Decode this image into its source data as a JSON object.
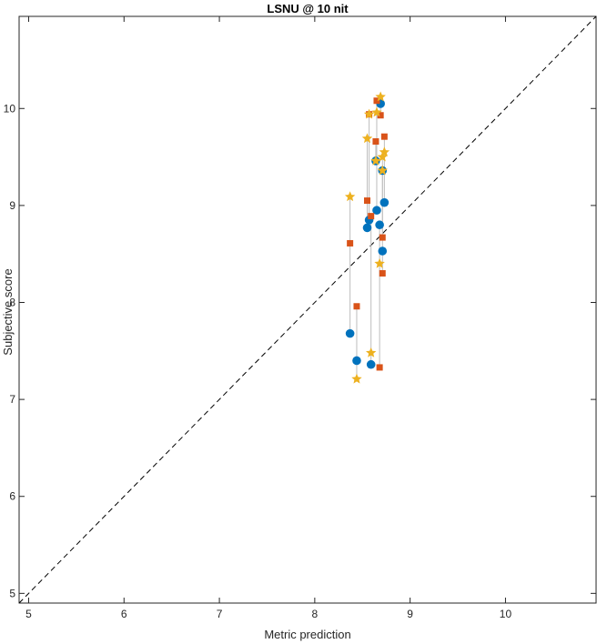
{
  "chart_data": {
    "type": "scatter",
    "title": "LSNU @ 10 nit",
    "xlabel": "Metric prediction",
    "ylabel": "Subjective score",
    "xlim": [
      4.9,
      10.95
    ],
    "ylim": [
      4.9,
      10.95
    ],
    "xticks": [
      5,
      6,
      7,
      8,
      9,
      10
    ],
    "yticks": [
      5,
      6,
      7,
      8,
      9,
      10
    ],
    "grid": false,
    "box": true,
    "reference_line": {
      "style": "dashed",
      "color": "#000000",
      "from": [
        4.9,
        4.9
      ],
      "to": [
        10.95,
        10.95
      ]
    },
    "colors": {
      "circle": "#0072BD",
      "square": "#D95319",
      "star": "#EDB120",
      "connector": "#BDBDBD"
    },
    "points": [
      {
        "x": 8.37,
        "y_circle": 7.68,
        "y_square": 8.61,
        "y_star": 9.09
      },
      {
        "x": 8.44,
        "y_circle": 7.4,
        "y_square": 7.96,
        "y_star": 7.21
      },
      {
        "x": 8.55,
        "y_circle": 8.77,
        "y_square": 9.05,
        "y_star": 9.69
      },
      {
        "x": 8.57,
        "y_circle": 8.85,
        "y_square": 9.94,
        "y_star": 9.94
      },
      {
        "x": 8.59,
        "y_circle": 7.36,
        "y_square": 8.89,
        "y_star": 7.48
      },
      {
        "x": 8.64,
        "y_circle": 9.46,
        "y_square": 9.66,
        "y_star": 9.46
      },
      {
        "x": 8.65,
        "y_circle": 8.95,
        "y_square": 10.08,
        "y_star": 9.96
      },
      {
        "x": 8.68,
        "y_circle": 8.8,
        "y_square": 7.33,
        "y_star": 8.4
      },
      {
        "x": 8.69,
        "y_circle": 10.05,
        "y_square": 9.93,
        "y_star": 10.12
      },
      {
        "x": 8.71,
        "y_circle": 8.53,
        "y_square": 8.3,
        "y_star": 9.36
      },
      {
        "x": 8.71,
        "y_circle": 9.36,
        "y_square": 8.67,
        "y_star": 9.5
      },
      {
        "x": 8.73,
        "y_circle": 9.03,
        "y_square": 9.71,
        "y_star": 9.55
      }
    ]
  }
}
